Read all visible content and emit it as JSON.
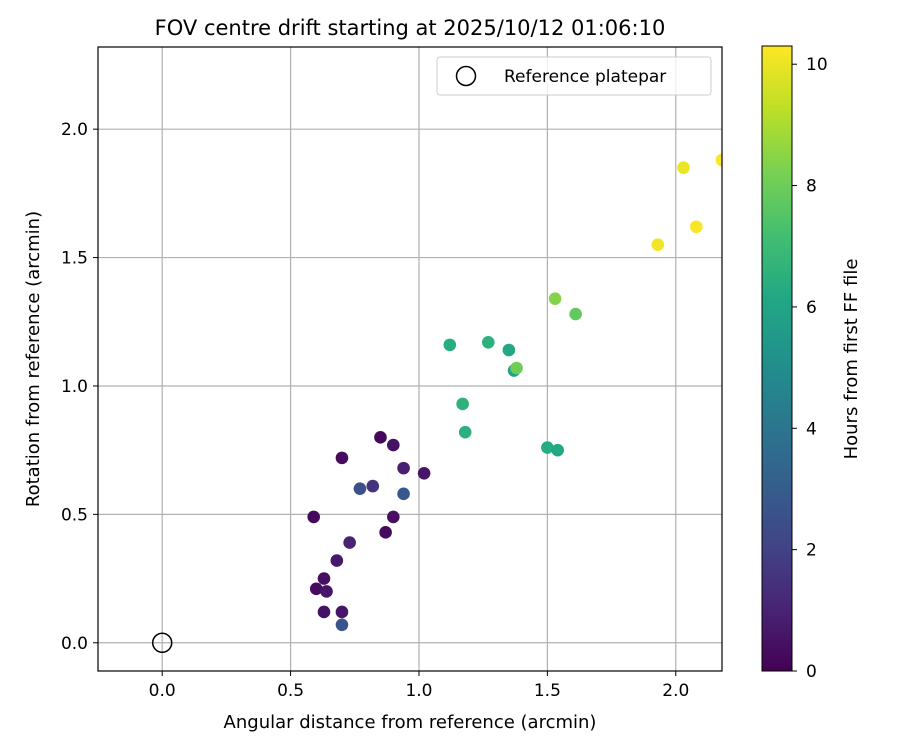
{
  "chart_data": {
    "type": "scatter",
    "title": "FOV centre drift starting at 2025/10/12 01:06:10",
    "xlabel": "Angular distance from reference (arcmin)",
    "ylabel": "Rotation from reference (arcmin)",
    "xlim": [
      -0.25,
      2.18
    ],
    "ylim": [
      -0.11,
      2.32
    ],
    "xticks": [
      0.0,
      0.5,
      1.0,
      1.5,
      2.0
    ],
    "xtick_labels": [
      "0.0",
      "0.5",
      "1.0",
      "1.5",
      "2.0"
    ],
    "yticks": [
      0.0,
      0.5,
      1.0,
      1.5,
      2.0
    ],
    "ytick_labels": [
      "0.0",
      "0.5",
      "1.0",
      "1.5",
      "2.0"
    ],
    "grid": true,
    "legend": {
      "position": "top-right",
      "entries": [
        "Reference platepar"
      ]
    },
    "reference_point": {
      "name": "Reference platepar",
      "x": 0.0,
      "y": 0.0
    },
    "colorbar": {
      "label": "Hours from first FF file",
      "colormap": "viridis",
      "range": [
        0,
        10.3
      ],
      "ticks": [
        0,
        2,
        4,
        6,
        8,
        10
      ],
      "tick_labels": [
        "0",
        "2",
        "4",
        "6",
        "8",
        "10"
      ]
    },
    "series": [
      {
        "points": [
          {
            "x": 0.59,
            "y": 0.49,
            "c": 0.2
          },
          {
            "x": 0.6,
            "y": 0.21,
            "c": 0.3
          },
          {
            "x": 0.63,
            "y": 0.25,
            "c": 0.4
          },
          {
            "x": 0.63,
            "y": 0.12,
            "c": 0.5
          },
          {
            "x": 0.64,
            "y": 0.2,
            "c": 0.6
          },
          {
            "x": 0.68,
            "y": 0.32,
            "c": 0.7
          },
          {
            "x": 0.7,
            "y": 0.72,
            "c": 0.3
          },
          {
            "x": 0.7,
            "y": 0.12,
            "c": 0.6
          },
          {
            "x": 0.7,
            "y": 0.07,
            "c": 2.7
          },
          {
            "x": 0.73,
            "y": 0.39,
            "c": 1.0
          },
          {
            "x": 0.77,
            "y": 0.6,
            "c": 2.5
          },
          {
            "x": 0.82,
            "y": 0.61,
            "c": 1.5
          },
          {
            "x": 0.85,
            "y": 0.8,
            "c": 0.2
          },
          {
            "x": 0.87,
            "y": 0.43,
            "c": 0.3
          },
          {
            "x": 0.9,
            "y": 0.49,
            "c": 0.4
          },
          {
            "x": 0.9,
            "y": 0.77,
            "c": 0.5
          },
          {
            "x": 0.94,
            "y": 0.68,
            "c": 0.9
          },
          {
            "x": 0.94,
            "y": 0.58,
            "c": 2.8
          },
          {
            "x": 1.02,
            "y": 0.66,
            "c": 0.6
          },
          {
            "x": 1.12,
            "y": 1.16,
            "c": 6.4
          },
          {
            "x": 1.17,
            "y": 0.93,
            "c": 6.6
          },
          {
            "x": 1.18,
            "y": 0.82,
            "c": 6.5
          },
          {
            "x": 1.27,
            "y": 1.17,
            "c": 6.5
          },
          {
            "x": 1.35,
            "y": 1.14,
            "c": 6.2
          },
          {
            "x": 1.37,
            "y": 1.06,
            "c": 6.0
          },
          {
            "x": 1.38,
            "y": 1.07,
            "c": 8.0
          },
          {
            "x": 1.5,
            "y": 0.76,
            "c": 6.3
          },
          {
            "x": 1.54,
            "y": 0.75,
            "c": 6.2
          },
          {
            "x": 1.53,
            "y": 1.34,
            "c": 8.4
          },
          {
            "x": 1.61,
            "y": 1.28,
            "c": 7.8
          },
          {
            "x": 1.93,
            "y": 1.55,
            "c": 10.1
          },
          {
            "x": 2.03,
            "y": 1.85,
            "c": 10.0
          },
          {
            "x": 2.08,
            "y": 1.62,
            "c": 10.2
          },
          {
            "x": 2.18,
            "y": 1.88,
            "c": 10.3
          }
        ]
      }
    ]
  }
}
